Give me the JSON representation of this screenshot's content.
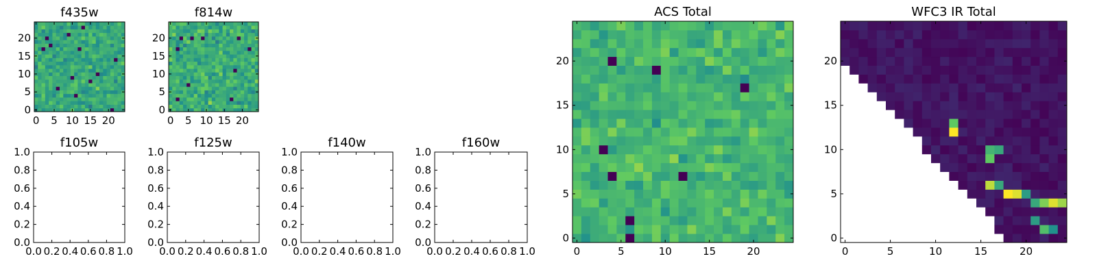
{
  "colors": {
    "viridis_stops": [
      "#440154",
      "#3b528b",
      "#21918c",
      "#5ec962",
      "#fde725"
    ],
    "frame": "#000000",
    "background": "#ffffff"
  },
  "chart_data": [
    {
      "type": "heatmap",
      "title": "f435w",
      "grid": false,
      "size": [
        25,
        25
      ],
      "xlim": [
        -0.5,
        24.5
      ],
      "ylim": [
        -0.5,
        24.5
      ],
      "xticks": [
        0,
        5,
        10,
        15,
        20
      ],
      "yticks": [
        0,
        5,
        10,
        15,
        20
      ],
      "pattern": "noisy-random-field",
      "seed": 11,
      "mean": 0.6,
      "spread": 0.22,
      "dark_outlier_count": 14
    },
    {
      "type": "heatmap",
      "title": "f814w",
      "grid": false,
      "size": [
        25,
        25
      ],
      "xlim": [
        -0.5,
        24.5
      ],
      "ylim": [
        -0.5,
        24.5
      ],
      "xticks": [
        0,
        5,
        10,
        15,
        20
      ],
      "yticks": [
        0,
        5,
        10,
        15,
        20
      ],
      "pattern": "noisy-random-field",
      "seed": 23,
      "mean": 0.62,
      "spread": 0.24,
      "dark_outlier_count": 10
    },
    {
      "type": "empty",
      "title": "f105w",
      "xlim": [
        0,
        1
      ],
      "ylim": [
        0,
        1
      ],
      "xticks": [
        "0.0",
        "0.2",
        "0.4",
        "0.6",
        "0.8",
        "1.0"
      ],
      "yticks": [
        "0.0",
        "0.2",
        "0.4",
        "0.6",
        "0.8",
        "1.0"
      ]
    },
    {
      "type": "empty",
      "title": "f125w",
      "xlim": [
        0,
        1
      ],
      "ylim": [
        0,
        1
      ],
      "xticks": [
        "0.0",
        "0.2",
        "0.4",
        "0.6",
        "0.8",
        "1.0"
      ],
      "yticks": [
        "0.0",
        "0.2",
        "0.4",
        "0.6",
        "0.8",
        "1.0"
      ]
    },
    {
      "type": "empty",
      "title": "f140w",
      "xlim": [
        0,
        1
      ],
      "ylim": [
        0,
        1
      ],
      "xticks": [
        "0.0",
        "0.2",
        "0.4",
        "0.6",
        "0.8",
        "1.0"
      ],
      "yticks": [
        "0.0",
        "0.2",
        "0.4",
        "0.6",
        "0.8",
        "1.0"
      ]
    },
    {
      "type": "empty",
      "title": "f160w",
      "xlim": [
        0,
        1
      ],
      "ylim": [
        0,
        1
      ],
      "xticks": [
        "0.0",
        "0.2",
        "0.4",
        "0.6",
        "0.8",
        "1.0"
      ],
      "yticks": [
        "0.0",
        "0.2",
        "0.4",
        "0.6",
        "0.8",
        "1.0"
      ]
    },
    {
      "type": "heatmap",
      "title": "ACS Total",
      "grid": false,
      "size": [
        25,
        25
      ],
      "xlim": [
        -0.5,
        24.5
      ],
      "ylim": [
        -0.5,
        24.5
      ],
      "xticks": [
        0,
        5,
        10,
        15,
        20
      ],
      "yticks": [
        0,
        5,
        10,
        15,
        20
      ],
      "pattern": "noisy-random-field",
      "seed": 37,
      "mean": 0.66,
      "spread": 0.2,
      "dark_outlier_count": 8
    },
    {
      "type": "heatmap",
      "title": "WFC3 IR Total",
      "grid": false,
      "size": [
        25,
        25
      ],
      "xlim": [
        -0.5,
        24.5
      ],
      "ylim": [
        -0.5,
        24.5
      ],
      "xticks": [
        0,
        5,
        10,
        15,
        20
      ],
      "yticks": [
        0,
        5,
        10,
        15,
        20
      ],
      "pattern": "triangle-masked-faint",
      "seed": 53,
      "mask": "empty where y < 20 - 1.12*x (white lower-left triangle)",
      "background": 0.06,
      "spread": 0.05,
      "hotspots": [
        {
          "x": 12,
          "y": 12,
          "value": 1.0
        },
        {
          "x": 12,
          "y": 13,
          "value": 0.75
        },
        {
          "x": 16,
          "y": 10,
          "value": 0.65
        },
        {
          "x": 17,
          "y": 10,
          "value": 0.6
        },
        {
          "x": 16,
          "y": 9,
          "value": 0.75
        },
        {
          "x": 16,
          "y": 6,
          "value": 0.9
        },
        {
          "x": 17,
          "y": 6,
          "value": 0.6
        },
        {
          "x": 18,
          "y": 5,
          "value": 1.0
        },
        {
          "x": 19,
          "y": 5,
          "value": 0.95
        },
        {
          "x": 20,
          "y": 5,
          "value": 0.55
        },
        {
          "x": 21,
          "y": 4,
          "value": 0.6
        },
        {
          "x": 22,
          "y": 4,
          "value": 0.8
        },
        {
          "x": 23,
          "y": 4,
          "value": 0.95
        },
        {
          "x": 24,
          "y": 4,
          "value": 0.85
        },
        {
          "x": 21,
          "y": 2,
          "value": 0.55
        },
        {
          "x": 22,
          "y": 1,
          "value": 0.7
        },
        {
          "x": 23,
          "y": 1,
          "value": 0.5
        }
      ]
    }
  ]
}
